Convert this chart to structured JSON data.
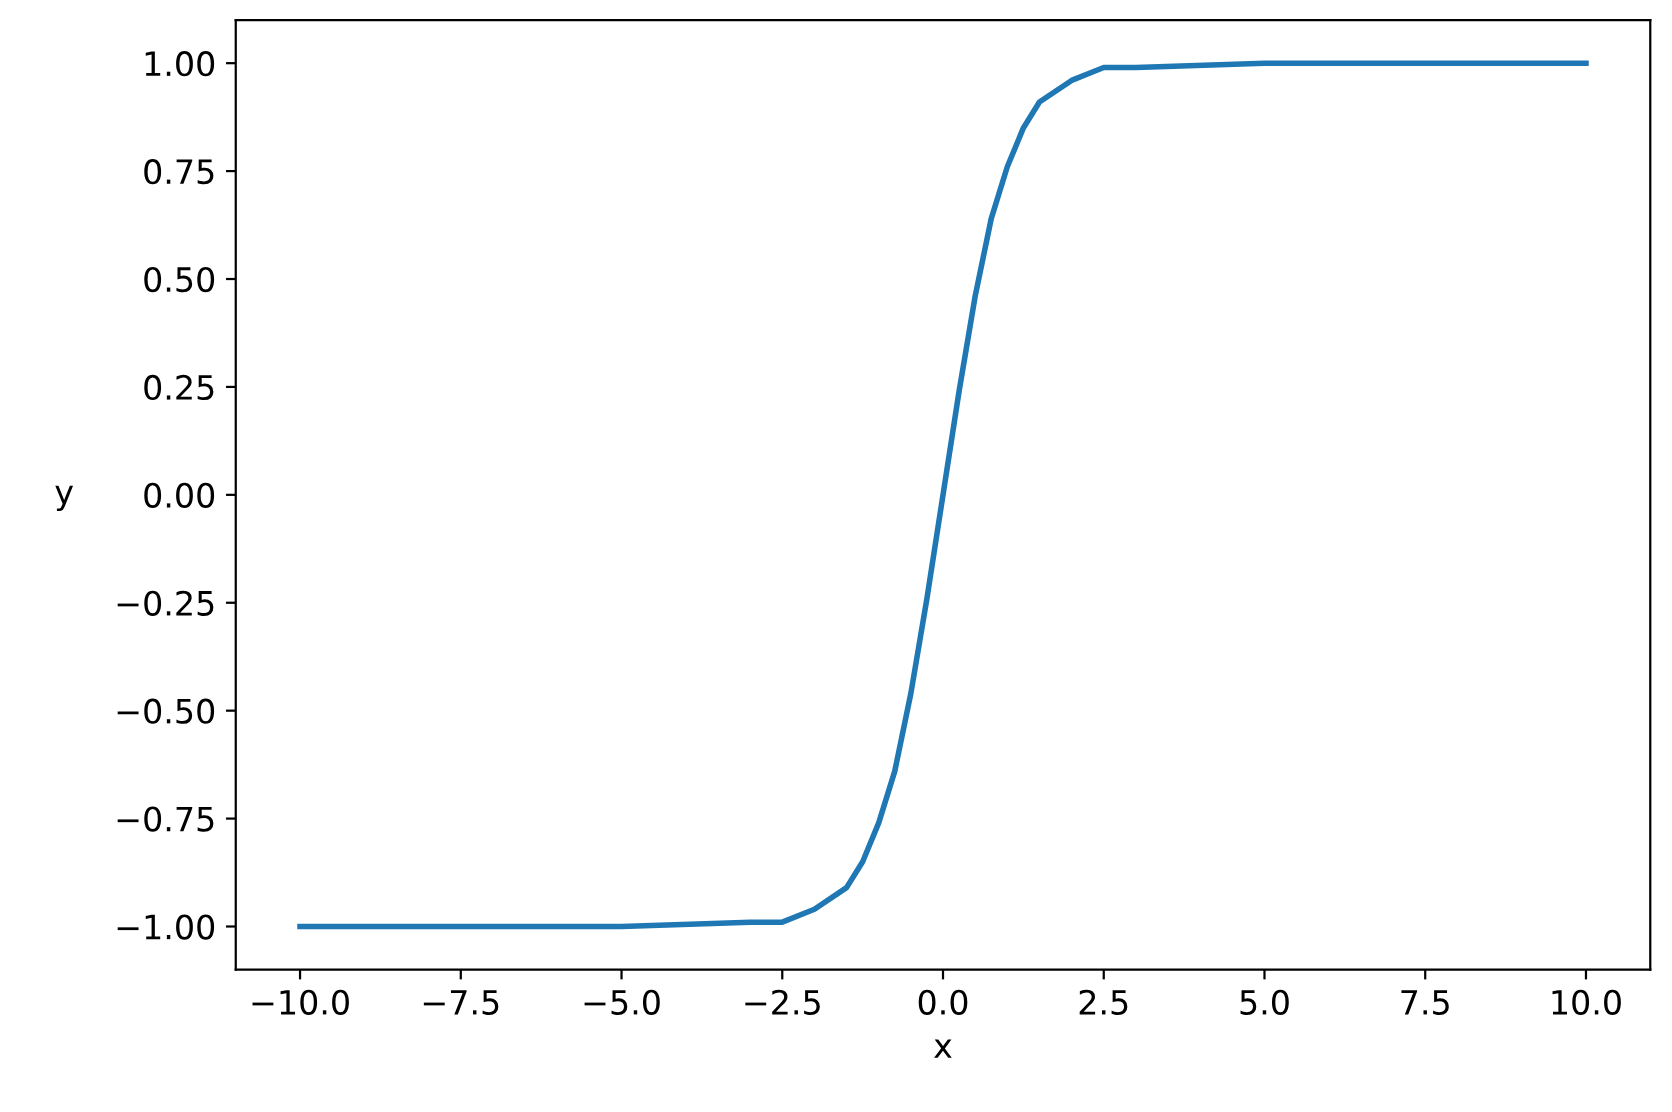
{
  "chart_data": {
    "type": "line",
    "xlabel": "x",
    "ylabel": "y",
    "x": [
      -10,
      -5,
      -3,
      -2.5,
      -2,
      -1.5,
      -1.25,
      -1,
      -0.75,
      -0.5,
      -0.25,
      0,
      0.25,
      0.5,
      0.75,
      1,
      1.25,
      1.5,
      2,
      2.5,
      3,
      5,
      10
    ],
    "series": [
      {
        "color": "#1f77b4",
        "values": [
          -1,
          -1,
          -0.99,
          -0.99,
          -0.96,
          -0.91,
          -0.85,
          -0.76,
          -0.64,
          -0.46,
          -0.24,
          0,
          0.24,
          0.46,
          0.64,
          0.76,
          0.85,
          0.91,
          0.96,
          0.99,
          0.99,
          1,
          1
        ]
      }
    ],
    "xlim": [
      -11,
      11
    ],
    "ylim": [
      -1.1,
      1.1
    ],
    "xticks": [
      {
        "value": -10,
        "label": "−10.0"
      },
      {
        "value": -7.5,
        "label": "−7.5"
      },
      {
        "value": -5,
        "label": "−5.0"
      },
      {
        "value": -2.5,
        "label": "−2.5"
      },
      {
        "value": 0,
        "label": "0.0"
      },
      {
        "value": 2.5,
        "label": "2.5"
      },
      {
        "value": 5,
        "label": "5.0"
      },
      {
        "value": 7.5,
        "label": "7.5"
      },
      {
        "value": 10,
        "label": "10.0"
      }
    ],
    "yticks": [
      {
        "value": -1,
        "label": "−1.00"
      },
      {
        "value": -0.75,
        "label": "−0.75"
      },
      {
        "value": -0.5,
        "label": "−0.50"
      },
      {
        "value": -0.25,
        "label": "−0.25"
      },
      {
        "value": 0,
        "label": "0.00"
      },
      {
        "value": 0.25,
        "label": "0.25"
      },
      {
        "value": 0.5,
        "label": "0.50"
      },
      {
        "value": 0.75,
        "label": "0.75"
      },
      {
        "value": 1,
        "label": "1.00"
      }
    ],
    "grid": false,
    "legend": false
  }
}
